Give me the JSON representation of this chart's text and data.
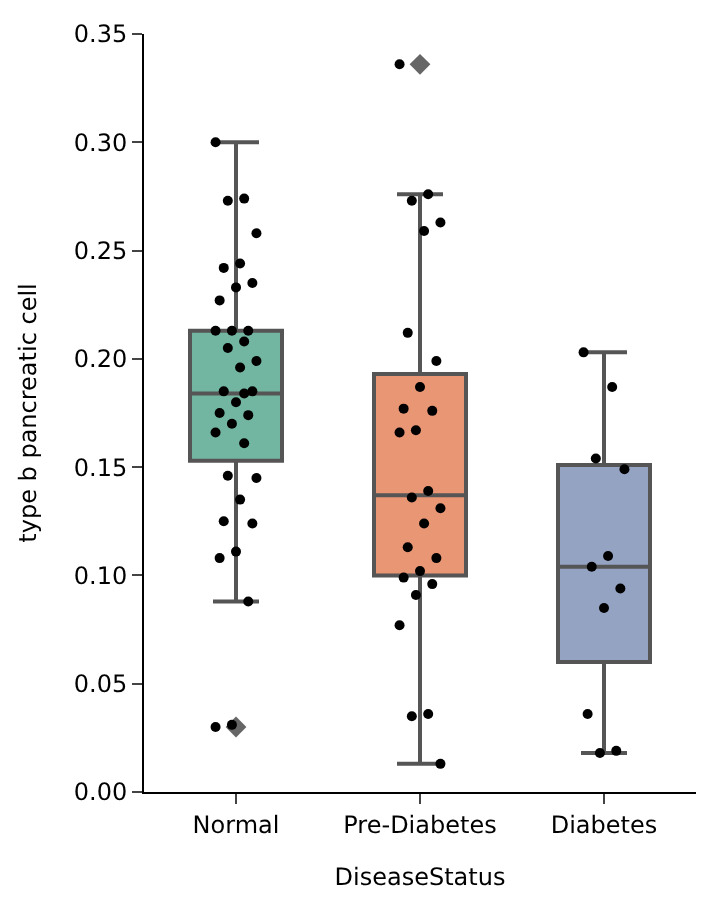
{
  "chart_data": {
    "type": "box",
    "xlabel": "DiseaseStatus",
    "ylabel": "type b pancreatic cell",
    "categories": [
      "Normal",
      "Pre-Diabetes",
      "Diabetes"
    ],
    "colors": [
      "#72b6a1",
      "#e99675",
      "#95a3c3"
    ],
    "boxes": [
      {
        "low": 0.088,
        "q1": 0.153,
        "median": 0.184,
        "q3": 0.213,
        "high": 0.3,
        "outliers": [
          0.03
        ]
      },
      {
        "low": 0.013,
        "q1": 0.1,
        "median": 0.137,
        "q3": 0.193,
        "high": 0.276,
        "outliers": [
          0.336
        ]
      },
      {
        "low": 0.018,
        "q1": 0.06,
        "median": 0.104,
        "q3": 0.151,
        "high": 0.203
      }
    ],
    "series": [
      {
        "type": "scatter",
        "color": "#000000",
        "x": [
          "Normal",
          "Normal",
          "Normal",
          "Normal",
          "Normal",
          "Normal",
          "Normal",
          "Normal",
          "Normal",
          "Normal",
          "Normal",
          "Normal",
          "Normal",
          "Normal",
          "Normal",
          "Normal",
          "Normal",
          "Normal",
          "Normal",
          "Normal",
          "Normal",
          "Normal",
          "Normal",
          "Normal",
          "Normal",
          "Normal",
          "Normal",
          "Normal",
          "Normal",
          "Normal",
          "Normal",
          "Normal",
          "Normal",
          "Normal",
          "Normal"
        ],
        "values": [
          0.3,
          0.274,
          0.273,
          0.258,
          0.244,
          0.242,
          0.235,
          0.233,
          0.227,
          0.213,
          0.213,
          0.213,
          0.208,
          0.205,
          0.199,
          0.196,
          0.185,
          0.185,
          0.18,
          0.175,
          0.174,
          0.17,
          0.166,
          0.161,
          0.146,
          0.145,
          0.135,
          0.125,
          0.124,
          0.111,
          0.108,
          0.088,
          0.031,
          0.03,
          0.184
        ]
      },
      {
        "type": "scatter",
        "color": "#000000",
        "x": [
          "Pre-Diabetes",
          "Pre-Diabetes",
          "Pre-Diabetes",
          "Pre-Diabetes",
          "Pre-Diabetes",
          "Pre-Diabetes",
          "Pre-Diabetes",
          "Pre-Diabetes",
          "Pre-Diabetes",
          "Pre-Diabetes",
          "Pre-Diabetes",
          "Pre-Diabetes",
          "Pre-Diabetes",
          "Pre-Diabetes",
          "Pre-Diabetes",
          "Pre-Diabetes",
          "Pre-Diabetes",
          "Pre-Diabetes",
          "Pre-Diabetes",
          "Pre-Diabetes",
          "Pre-Diabetes",
          "Pre-Diabetes",
          "Pre-Diabetes",
          "Pre-Diabetes",
          "Pre-Diabetes",
          "Pre-Diabetes"
        ],
        "values": [
          0.336,
          0.276,
          0.273,
          0.263,
          0.259,
          0.212,
          0.199,
          0.187,
          0.177,
          0.176,
          0.167,
          0.166,
          0.139,
          0.136,
          0.131,
          0.124,
          0.113,
          0.108,
          0.102,
          0.099,
          0.096,
          0.091,
          0.077,
          0.036,
          0.035,
          0.013
        ]
      },
      {
        "type": "scatter",
        "color": "#000000",
        "x": [
          "Diabetes",
          "Diabetes",
          "Diabetes",
          "Diabetes",
          "Diabetes",
          "Diabetes",
          "Diabetes",
          "Diabetes",
          "Diabetes",
          "Diabetes",
          "Diabetes"
        ],
        "values": [
          0.203,
          0.187,
          0.154,
          0.149,
          0.109,
          0.104,
          0.094,
          0.085,
          0.036,
          0.019,
          0.018
        ]
      }
    ],
    "ylim": [
      0,
      0.35
    ],
    "yticks": [
      {
        "value": 0,
        "label": "0.00"
      },
      {
        "value": 0.05,
        "label": "0.05"
      },
      {
        "value": 0.1,
        "label": "0.10"
      },
      {
        "value": 0.15,
        "label": "0.15"
      },
      {
        "value": 0.2,
        "label": "0.20"
      },
      {
        "value": 0.25,
        "label": "0.25"
      },
      {
        "value": 0.3,
        "label": "0.30"
      },
      {
        "value": 0.35,
        "label": "0.35"
      }
    ],
    "marker": "circle"
  }
}
